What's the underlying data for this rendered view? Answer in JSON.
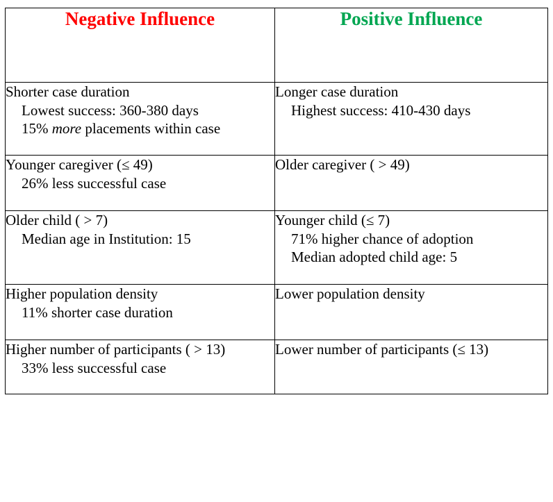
{
  "headers": {
    "negative": "Negative Influence",
    "positive": "Positive Influence",
    "negative_color": "#ff0000",
    "positive_color": "#00a651"
  },
  "rows": [
    {
      "negative": {
        "main": "Shorter case duration",
        "sub1": "Lowest success: 360-380 days",
        "sub2_before": "15% ",
        "sub2_em": "more",
        "sub2_after": " placements within case"
      },
      "positive": {
        "main": "Longer case duration",
        "sub1": "Highest success: 410-430 days"
      }
    },
    {
      "negative": {
        "main": "Younger caregiver (≤ 49)",
        "sub1": "26% less successful case"
      },
      "positive": {
        "main": "Older caregiver ( > 49)"
      }
    },
    {
      "negative": {
        "main": "Older child ( > 7)",
        "sub1": "Median age in Institution: 15"
      },
      "positive": {
        "main": "Younger child (≤ 7)",
        "sub1": "71% higher chance of adoption",
        "sub2": "Median adopted child age: 5"
      }
    },
    {
      "negative": {
        "main": "Higher population density",
        "sub1": "11% shorter case duration"
      },
      "positive": {
        "main": "Lower population density"
      }
    },
    {
      "negative": {
        "main": "Higher number of participants ( > 13)",
        "sub1": "33% less successful case"
      },
      "positive": {
        "main": "Lower number of participants (≤ 13)"
      }
    }
  ]
}
